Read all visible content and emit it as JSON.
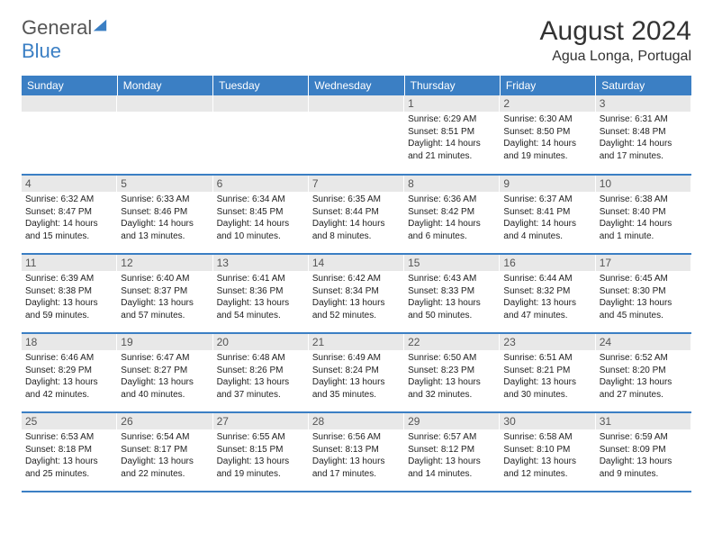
{
  "logo": {
    "text1": "General",
    "text2": "Blue"
  },
  "title": "August 2024",
  "location": "Agua Longa, Portugal",
  "colors": {
    "header_bg": "#3b7fc4",
    "header_text": "#ffffff",
    "daynum_bg": "#e8e8e8",
    "border": "#3b7fc4"
  },
  "fonts": {
    "title_size": 30,
    "location_size": 16,
    "dayname_size": 12,
    "cell_size": 10
  },
  "dayNames": [
    "Sunday",
    "Monday",
    "Tuesday",
    "Wednesday",
    "Thursday",
    "Friday",
    "Saturday"
  ],
  "weeks": [
    [
      null,
      null,
      null,
      null,
      {
        "num": "1",
        "sunrise": "6:29 AM",
        "sunset": "8:51 PM",
        "daylight": "14 hours and 21 minutes."
      },
      {
        "num": "2",
        "sunrise": "6:30 AM",
        "sunset": "8:50 PM",
        "daylight": "14 hours and 19 minutes."
      },
      {
        "num": "3",
        "sunrise": "6:31 AM",
        "sunset": "8:48 PM",
        "daylight": "14 hours and 17 minutes."
      }
    ],
    [
      {
        "num": "4",
        "sunrise": "6:32 AM",
        "sunset": "8:47 PM",
        "daylight": "14 hours and 15 minutes."
      },
      {
        "num": "5",
        "sunrise": "6:33 AM",
        "sunset": "8:46 PM",
        "daylight": "14 hours and 13 minutes."
      },
      {
        "num": "6",
        "sunrise": "6:34 AM",
        "sunset": "8:45 PM",
        "daylight": "14 hours and 10 minutes."
      },
      {
        "num": "7",
        "sunrise": "6:35 AM",
        "sunset": "8:44 PM",
        "daylight": "14 hours and 8 minutes."
      },
      {
        "num": "8",
        "sunrise": "6:36 AM",
        "sunset": "8:42 PM",
        "daylight": "14 hours and 6 minutes."
      },
      {
        "num": "9",
        "sunrise": "6:37 AM",
        "sunset": "8:41 PM",
        "daylight": "14 hours and 4 minutes."
      },
      {
        "num": "10",
        "sunrise": "6:38 AM",
        "sunset": "8:40 PM",
        "daylight": "14 hours and 1 minute."
      }
    ],
    [
      {
        "num": "11",
        "sunrise": "6:39 AM",
        "sunset": "8:38 PM",
        "daylight": "13 hours and 59 minutes."
      },
      {
        "num": "12",
        "sunrise": "6:40 AM",
        "sunset": "8:37 PM",
        "daylight": "13 hours and 57 minutes."
      },
      {
        "num": "13",
        "sunrise": "6:41 AM",
        "sunset": "8:36 PM",
        "daylight": "13 hours and 54 minutes."
      },
      {
        "num": "14",
        "sunrise": "6:42 AM",
        "sunset": "8:34 PM",
        "daylight": "13 hours and 52 minutes."
      },
      {
        "num": "15",
        "sunrise": "6:43 AM",
        "sunset": "8:33 PM",
        "daylight": "13 hours and 50 minutes."
      },
      {
        "num": "16",
        "sunrise": "6:44 AM",
        "sunset": "8:32 PM",
        "daylight": "13 hours and 47 minutes."
      },
      {
        "num": "17",
        "sunrise": "6:45 AM",
        "sunset": "8:30 PM",
        "daylight": "13 hours and 45 minutes."
      }
    ],
    [
      {
        "num": "18",
        "sunrise": "6:46 AM",
        "sunset": "8:29 PM",
        "daylight": "13 hours and 42 minutes."
      },
      {
        "num": "19",
        "sunrise": "6:47 AM",
        "sunset": "8:27 PM",
        "daylight": "13 hours and 40 minutes."
      },
      {
        "num": "20",
        "sunrise": "6:48 AM",
        "sunset": "8:26 PM",
        "daylight": "13 hours and 37 minutes."
      },
      {
        "num": "21",
        "sunrise": "6:49 AM",
        "sunset": "8:24 PM",
        "daylight": "13 hours and 35 minutes."
      },
      {
        "num": "22",
        "sunrise": "6:50 AM",
        "sunset": "8:23 PM",
        "daylight": "13 hours and 32 minutes."
      },
      {
        "num": "23",
        "sunrise": "6:51 AM",
        "sunset": "8:21 PM",
        "daylight": "13 hours and 30 minutes."
      },
      {
        "num": "24",
        "sunrise": "6:52 AM",
        "sunset": "8:20 PM",
        "daylight": "13 hours and 27 minutes."
      }
    ],
    [
      {
        "num": "25",
        "sunrise": "6:53 AM",
        "sunset": "8:18 PM",
        "daylight": "13 hours and 25 minutes."
      },
      {
        "num": "26",
        "sunrise": "6:54 AM",
        "sunset": "8:17 PM",
        "daylight": "13 hours and 22 minutes."
      },
      {
        "num": "27",
        "sunrise": "6:55 AM",
        "sunset": "8:15 PM",
        "daylight": "13 hours and 19 minutes."
      },
      {
        "num": "28",
        "sunrise": "6:56 AM",
        "sunset": "8:13 PM",
        "daylight": "13 hours and 17 minutes."
      },
      {
        "num": "29",
        "sunrise": "6:57 AM",
        "sunset": "8:12 PM",
        "daylight": "13 hours and 14 minutes."
      },
      {
        "num": "30",
        "sunrise": "6:58 AM",
        "sunset": "8:10 PM",
        "daylight": "13 hours and 12 minutes."
      },
      {
        "num": "31",
        "sunrise": "6:59 AM",
        "sunset": "8:09 PM",
        "daylight": "13 hours and 9 minutes."
      }
    ]
  ]
}
